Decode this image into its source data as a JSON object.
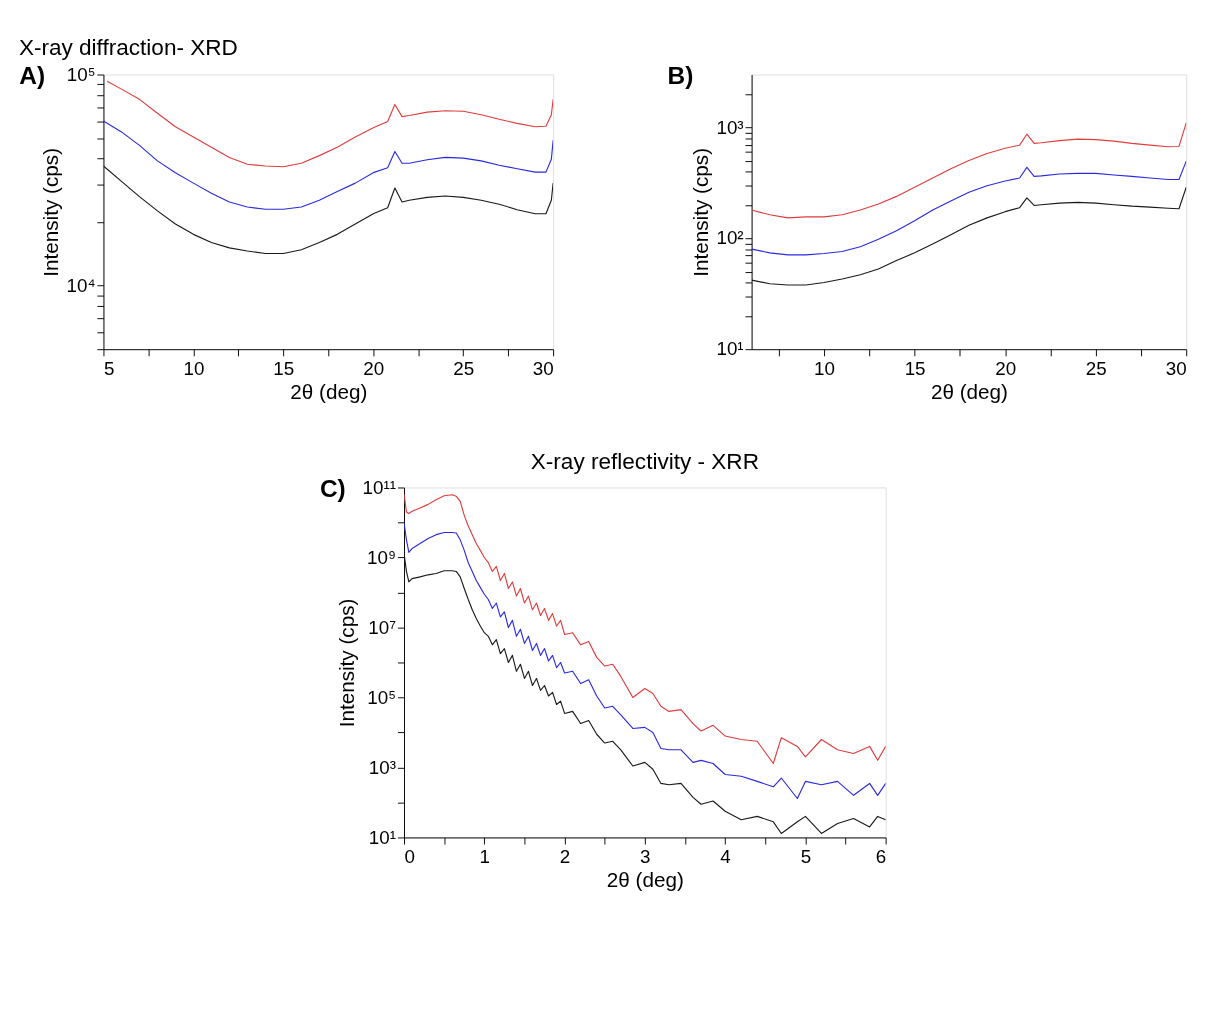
{
  "chart_data": [
    {
      "type": "line",
      "title": "X-ray diffraction- XRD",
      "annotations": [
        "A)"
      ],
      "xlabel": "2θ (deg)",
      "ylabel": "Intensity (cps)",
      "log": "y",
      "xlim": [
        5,
        30
      ],
      "xticks": [
        5,
        {
          "value": 7.5,
          "label": null
        },
        10,
        {
          "value": 12.5,
          "label": null
        },
        15,
        {
          "value": 17.5,
          "label": null
        },
        20,
        {
          "value": 22.5,
          "label": null
        },
        25,
        {
          "value": 27.5,
          "label": null
        },
        30
      ],
      "ylim": [
        5000,
        100000
      ],
      "yticks": [
        {
          "value": 5000,
          "label": null
        },
        {
          "value": 6000,
          "label": null
        },
        {
          "value": 7000,
          "label": null
        },
        {
          "value": 8000,
          "label": null
        },
        {
          "value": 9000,
          "label": null
        },
        {
          "value": 10000,
          "label": "10⁴"
        },
        {
          "value": 20000,
          "label": null
        },
        {
          "value": 30000,
          "label": null
        },
        {
          "value": 40000,
          "label": null
        },
        {
          "value": 50000,
          "label": null
        },
        {
          "value": 60000,
          "label": null
        },
        {
          "value": 70000,
          "label": null
        },
        {
          "value": 80000,
          "label": null
        },
        {
          "value": 90000,
          "label": null
        },
        {
          "value": 100000,
          "label": "10⁵"
        }
      ],
      "x": [
        5,
        6,
        7,
        8,
        9,
        10,
        11,
        12,
        13,
        14,
        15,
        16,
        17,
        18,
        19,
        20,
        20.8,
        21.2,
        21.6,
        22,
        23,
        24,
        25,
        26,
        27,
        28,
        29,
        29.6,
        29.9,
        30
      ],
      "series": [
        {
          "color": "#e03c3c",
          "x": [
            5.2,
            6,
            7,
            8,
            9,
            10,
            11,
            12,
            13,
            14,
            15,
            16,
            17,
            18,
            19,
            20,
            20.8,
            21.2,
            21.6,
            22,
            23,
            24,
            25,
            26,
            27,
            28,
            29,
            29.6,
            29.9,
            30
          ],
          "values": [
            93000,
            85300,
            76300,
            65600,
            56600,
            50600,
            45300,
            40500,
            37600,
            36900,
            36600,
            38000,
            41300,
            45300,
            50600,
            56000,
            59900,
            72100,
            63200,
            64000,
            66400,
            67400,
            67000,
            64500,
            61400,
            58700,
            56600,
            56900,
            64500,
            76300
          ]
        },
        {
          "color": "#2a2ae0",
          "values": [
            60300,
            53500,
            46200,
            39000,
            34300,
            30600,
            27400,
            24900,
            23600,
            23000,
            23000,
            23600,
            25400,
            27900,
            30600,
            34300,
            36200,
            43200,
            38000,
            38000,
            39500,
            40500,
            40200,
            39000,
            37200,
            35800,
            34500,
            34500,
            39700,
            48800
          ]
        },
        {
          "color": "#1a1a1a",
          "values": [
            36900,
            31200,
            26400,
            22600,
            19600,
            17500,
            16000,
            15100,
            14600,
            14200,
            14200,
            14800,
            16000,
            17500,
            19600,
            21900,
            23400,
            29000,
            24900,
            25400,
            26200,
            26600,
            26200,
            25400,
            24300,
            22900,
            21900,
            21900,
            25400,
            30600
          ]
        }
      ]
    },
    {
      "type": "line",
      "annotations": [
        "B)"
      ],
      "xlabel": "2θ (deg)",
      "ylabel": "Intensity (cps)",
      "log": "y",
      "xlim": [
        6,
        30
      ],
      "xticks": [
        {
          "value": 7.5,
          "label": null
        },
        10,
        {
          "value": 12.5,
          "label": null
        },
        15,
        {
          "value": 17.5,
          "label": null
        },
        20,
        {
          "value": 22.5,
          "label": null
        },
        25,
        {
          "value": 27.5,
          "label": null
        },
        30
      ],
      "ylim": [
        10,
        3000
      ],
      "yticks": [
        {
          "value": 10,
          "label": "10¹"
        },
        {
          "value": 20,
          "label": null
        },
        {
          "value": 30,
          "label": null
        },
        {
          "value": 40,
          "label": null
        },
        {
          "value": 50,
          "label": null
        },
        {
          "value": 60,
          "label": null
        },
        {
          "value": 70,
          "label": null
        },
        {
          "value": 80,
          "label": null
        },
        {
          "value": 90,
          "label": null
        },
        {
          "value": 100,
          "label": "10²"
        },
        {
          "value": 200,
          "label": null
        },
        {
          "value": 300,
          "label": null
        },
        {
          "value": 400,
          "label": null
        },
        {
          "value": 500,
          "label": null
        },
        {
          "value": 600,
          "label": null
        },
        {
          "value": 700,
          "label": null
        },
        {
          "value": 800,
          "label": null
        },
        {
          "value": 900,
          "label": null
        },
        {
          "value": 1000,
          "label": "10³"
        },
        {
          "value": 2000,
          "label": null
        }
      ],
      "x": [
        6,
        7,
        8,
        9,
        10,
        11,
        12,
        13,
        14,
        15,
        16,
        17,
        18,
        19,
        20,
        20.8,
        21.2,
        21.6,
        22,
        23,
        24,
        25,
        26,
        27,
        28,
        29,
        29.6,
        30
      ],
      "series": [
        {
          "color": "#e03c3c",
          "values": [
            180,
            163,
            153,
            156,
            156,
            163,
            180,
            204,
            239,
            289,
            350,
            424,
            503,
            583,
            649,
            692,
            869,
            718,
            728,
            760,
            785,
            776,
            752,
            718,
            692,
            670,
            674,
            1100
          ]
        },
        {
          "color": "#2a2ae0",
          "values": [
            80,
            74,
            71,
            71,
            73,
            76,
            84,
            98,
            117,
            144,
            180,
            217,
            260,
            298,
            329,
            350,
            437,
            362,
            366,
            380,
            385,
            385,
            373,
            362,
            350,
            339,
            339,
            497
          ]
        },
        {
          "color": "#1a1a1a",
          "values": [
            42,
            39,
            38,
            38,
            40,
            43,
            47,
            53,
            63,
            74,
            89,
            108,
            131,
            153,
            174,
            189,
            232,
            198,
            201,
            208,
            211,
            208,
            201,
            195,
            191,
            187,
            185,
            289
          ]
        }
      ]
    },
    {
      "type": "line",
      "title": "X-ray reflectivity - XRR",
      "annotations": [
        "C)"
      ],
      "xlabel": "2θ (deg)",
      "ylabel": "Intensity (cps)",
      "log": "y",
      "xlim": [
        0,
        6
      ],
      "xticks": [
        0,
        {
          "value": 0.5,
          "label": null
        },
        1,
        {
          "value": 1.5,
          "label": null
        },
        2,
        {
          "value": 2.5,
          "label": null
        },
        3,
        {
          "value": 3.5,
          "label": null
        },
        4,
        {
          "value": 4.5,
          "label": null
        },
        5,
        {
          "value": 5.5,
          "label": null
        },
        6
      ],
      "ylim": [
        10,
        100000000000
      ],
      "yticks": [
        {
          "value": 10,
          "label": "10¹"
        },
        {
          "value": 100,
          "label": null
        },
        {
          "value": 1000,
          "label": "10³"
        },
        {
          "value": 10000,
          "label": null
        },
        {
          "value": 100000,
          "label": "10⁵"
        },
        {
          "value": 1000000,
          "label": null
        },
        {
          "value": 10000000,
          "label": "10⁷"
        },
        {
          "value": 100000000,
          "label": null
        },
        {
          "value": 1000000000,
          "label": "10⁹"
        },
        {
          "value": 10000000000,
          "label": null
        },
        {
          "value": 100000000000,
          "label": "10¹¹"
        }
      ],
      "x": [
        0,
        0.03,
        0.06,
        0.1,
        0.2,
        0.3,
        0.4,
        0.5,
        0.6,
        0.65,
        0.7,
        0.75,
        0.8,
        0.85,
        0.9,
        0.95,
        1.0,
        1.05,
        1.1,
        1.15,
        1.2,
        1.25,
        1.3,
        1.35,
        1.4,
        1.45,
        1.5,
        1.55,
        1.6,
        1.65,
        1.7,
        1.75,
        1.8,
        1.85,
        1.9,
        1.95,
        2.0,
        2.1,
        2.2,
        2.3,
        2.4,
        2.5,
        2.6,
        2.7,
        2.85,
        3.0,
        3.1,
        3.2,
        3.3,
        3.45,
        3.6,
        3.7,
        3.85,
        4.0,
        4.2,
        4.4,
        4.6,
        4.7,
        4.9,
        5.0,
        5.2,
        5.4,
        5.6,
        5.8,
        5.9,
        6.0
      ],
      "series": [
        {
          "color": "#e03c3c",
          "values": [
            66000000000.0,
            20000000000.0,
            18000000000.0,
            21000000000.0,
            26000000000.0,
            33000000000.0,
            45000000000.0,
            58000000000.0,
            62000000000.0,
            56000000000.0,
            40000000000.0,
            16000000000.0,
            7900000000.0,
            4500000000.0,
            2500000000.0,
            1600000000.0,
            1000000000.0,
            710000000.0,
            400000000.0,
            560000000.0,
            220000000.0,
            350000000.0,
            130000000.0,
            200000000.0,
            79000000.0,
            130000000.0,
            50000000.0,
            79000000.0,
            32000000.0,
            50000000.0,
            22000000.0,
            35000000.0,
            16000000.0,
            25000000.0,
            11000000.0,
            16000000.0,
            6300000.0,
            7100000.0,
            3200000.0,
            4000000.0,
            1400000.0,
            790000.0,
            890000.0,
            400000.0,
            100000.0,
            180000.0,
            130000.0,
            56000.0,
            40000.0,
            45000.0,
            18000.0,
            11000.0,
            16000.0,
            7900.0,
            6300.0,
            5600.0,
            1300.0,
            7100.0,
            4000.0,
            2000.0,
            6300.0,
            3200.0,
            2500.0,
            4000.0,
            1600.0,
            4000.0
          ]
        },
        {
          "color": "#2a2ae0",
          "values": [
            10000000000.0,
            3200000000.0,
            1400000000.0,
            1800000000.0,
            2500000000.0,
            3500000000.0,
            4500000000.0,
            5200000000.0,
            5200000000.0,
            5000000000.0,
            3200000000.0,
            1600000000.0,
            710000000.0,
            400000000.0,
            220000000.0,
            140000000.0,
            89000000.0,
            63000000.0,
            35000000.0,
            50000000.0,
            20000000.0,
            28000000.0,
            10000000.0,
            16000000.0,
            5600000.0,
            8900000.0,
            3500000.0,
            5600000.0,
            2200000.0,
            3500000.0,
            1600000.0,
            2500000.0,
            1100000.0,
            1600000.0,
            710000.0,
            1000000.0,
            500000.0,
            560000.0,
            250000.0,
            320000.0,
            110000.0,
            50000.0,
            56000.0,
            32000.0,
            13000.0,
            14000.0,
            10000.0,
            3500.0,
            3200.0,
            3200.0,
            1400.0,
            1600.0,
            1300.0,
            630,
            560,
            400,
            280,
            500,
            130,
            400,
            320,
            400,
            160,
            350,
            160,
            350
          ]
        },
        {
          "color": "#1a1a1a",
          "values": [
            1300000000.0,
            400000000.0,
            200000000.0,
            250000000.0,
            280000000.0,
            320000000.0,
            350000000.0,
            420000000.0,
            420000000.0,
            400000000.0,
            280000000.0,
            130000000.0,
            63000000.0,
            32000000.0,
            18000000.0,
            11000000.0,
            7100000.0,
            5600000.0,
            3200000.0,
            4500000.0,
            1800000.0,
            2500000.0,
            1000000.0,
            1600000.0,
            560000.0,
            890000.0,
            350000.0,
            560000.0,
            220000.0,
            350000.0,
            160000.0,
            220000.0,
            110000.0,
            140000.0,
            63000.0,
            79000.0,
            35000.0,
            40000.0,
            18000.0,
            22000.0,
            8900.0,
            5000.0,
            5600.0,
            3200.0,
            1100.0,
            1400.0,
            890,
            350,
            320,
            350,
            140,
            89,
            110,
            56,
            32,
            40,
            28,
            13,
            28,
            40,
            13,
            25,
            35,
            20,
            40,
            32
          ]
        }
      ]
    }
  ]
}
